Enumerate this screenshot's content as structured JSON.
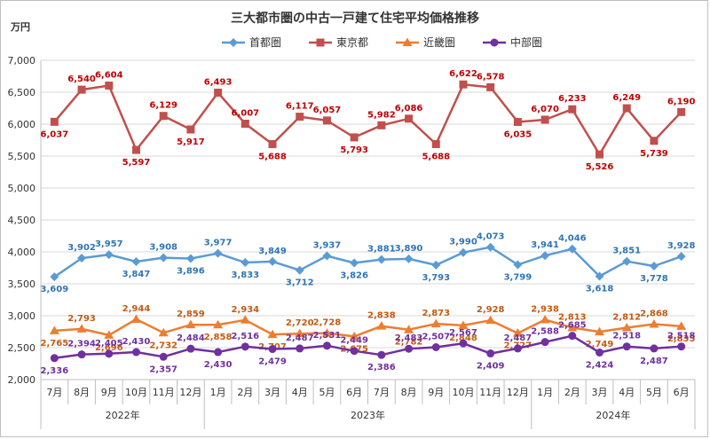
{
  "chart_data": {
    "type": "line",
    "title": "三大都市圏の中古一戸建て住宅平均価格推移",
    "ylabel": "万円",
    "ylim": [
      2000,
      7000
    ],
    "yticks": [
      2000,
      2500,
      3000,
      3500,
      4000,
      4500,
      5000,
      5500,
      6000,
      6500,
      7000
    ],
    "ytick_labels": [
      "2,000",
      "2,500",
      "3,000",
      "3,500",
      "4,000",
      "4,500",
      "5,000",
      "5,500",
      "6,000",
      "6,500",
      "7,000"
    ],
    "grid": true,
    "legend_position": "top",
    "categories": [
      "7月",
      "8月",
      "9月",
      "10月",
      "11月",
      "12月",
      "1月",
      "2月",
      "3月",
      "4月",
      "5月",
      "6月",
      "7月",
      "8月",
      "9月",
      "10月",
      "11月",
      "12月",
      "1月",
      "2月",
      "3月",
      "4月",
      "5月",
      "6月"
    ],
    "year_groups": [
      {
        "label": "2022年",
        "count": 6
      },
      {
        "label": "2023年",
        "count": 12
      },
      {
        "label": "2024年",
        "count": 6
      }
    ],
    "series": [
      {
        "name": "首都圏",
        "color": "#2e75b6",
        "marker": "diamond",
        "values": [
          3609,
          3902,
          3957,
          3847,
          3908,
          3896,
          3977,
          3833,
          3849,
          3712,
          3937,
          3826,
          3881,
          3890,
          3793,
          3990,
          4073,
          3799,
          3941,
          4046,
          3618,
          3851,
          3778,
          3928
        ]
      },
      {
        "name": "東京都",
        "color": "#c00000",
        "marker": "square",
        "values": [
          6037,
          6540,
          6604,
          5597,
          6129,
          5917,
          6493,
          6007,
          5688,
          6117,
          6057,
          5793,
          5982,
          6086,
          5688,
          6622,
          6578,
          6035,
          6070,
          6233,
          5526,
          6249,
          5739,
          6190
        ]
      },
      {
        "name": "近畿圏",
        "color": "#c55a11",
        "marker": "triangle",
        "values": [
          2765,
          2793,
          2696,
          2944,
          2732,
          2859,
          2858,
          2934,
          2707,
          2720,
          2728,
          2675,
          2838,
          2782,
          2873,
          2848,
          2928,
          2727,
          2938,
          2813,
          2749,
          2812,
          2868,
          2835
        ]
      },
      {
        "name": "中部圏",
        "color": "#7030a0",
        "marker": "circle",
        "values": [
          2336,
          2394,
          2405,
          2430,
          2357,
          2484,
          2430,
          2516,
          2479,
          2487,
          2531,
          2449,
          2386,
          2483,
          2507,
          2567,
          2409,
          2487,
          2588,
          2685,
          2424,
          2518,
          2487,
          2518
        ]
      }
    ],
    "line_colors": [
      "#5b9bd5",
      "#c0504d",
      "#ed7d31",
      "#7030a0"
    ],
    "label_colors": [
      "#2e75b6",
      "#c00000",
      "#c55a11",
      "#7030a0"
    ]
  }
}
